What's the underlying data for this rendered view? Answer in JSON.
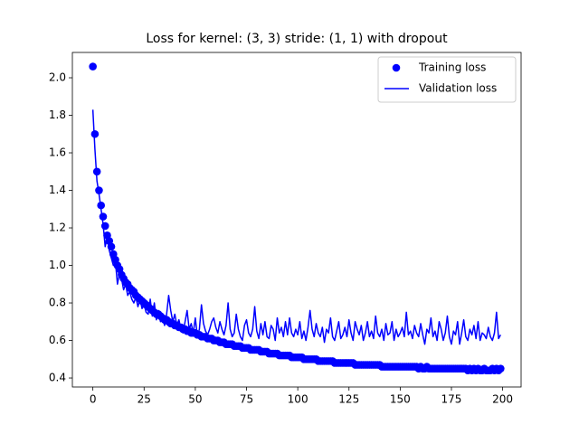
{
  "chart_data": {
    "type": "line",
    "title": "Loss for kernel: (3, 3) stride: (1, 1) with dropout",
    "xlim": [
      -10,
      209
    ],
    "ylim": [
      0.352,
      2.135
    ],
    "xticks": [
      0,
      25,
      50,
      75,
      100,
      125,
      150,
      175,
      200
    ],
    "yticks": [
      {
        "value": 0.4,
        "label": "0.4"
      },
      {
        "value": 0.6,
        "label": "0.6"
      },
      {
        "value": 0.8,
        "label": "0.8"
      },
      {
        "value": 1.0,
        "label": "1.0"
      },
      {
        "value": 1.2,
        "label": "1.2"
      },
      {
        "value": 1.4,
        "label": "1.4"
      },
      {
        "value": 1.6,
        "label": "1.6"
      },
      {
        "value": 1.8,
        "label": "1.8"
      },
      {
        "value": 2.0,
        "label": "2.0"
      }
    ],
    "legend": "upper right",
    "x": [
      0,
      1,
      2,
      3,
      4,
      5,
      6,
      7,
      8,
      9,
      10,
      11,
      12,
      13,
      14,
      15,
      16,
      17,
      18,
      19,
      20,
      21,
      22,
      23,
      24,
      25,
      26,
      27,
      28,
      29,
      30,
      31,
      32,
      33,
      34,
      35,
      36,
      37,
      38,
      39,
      40,
      41,
      42,
      43,
      44,
      45,
      46,
      47,
      48,
      49,
      50,
      51,
      52,
      53,
      54,
      55,
      56,
      57,
      58,
      59,
      60,
      61,
      62,
      63,
      64,
      65,
      66,
      67,
      68,
      69,
      70,
      71,
      72,
      73,
      74,
      75,
      76,
      77,
      78,
      79,
      80,
      81,
      82,
      83,
      84,
      85,
      86,
      87,
      88,
      89,
      90,
      91,
      92,
      93,
      94,
      95,
      96,
      97,
      98,
      99,
      100,
      101,
      102,
      103,
      104,
      105,
      106,
      107,
      108,
      109,
      110,
      111,
      112,
      113,
      114,
      115,
      116,
      117,
      118,
      119,
      120,
      121,
      122,
      123,
      124,
      125,
      126,
      127,
      128,
      129,
      130,
      131,
      132,
      133,
      134,
      135,
      136,
      137,
      138,
      139,
      140,
      141,
      142,
      143,
      144,
      145,
      146,
      147,
      148,
      149,
      150,
      151,
      152,
      153,
      154,
      155,
      156,
      157,
      158,
      159,
      160,
      161,
      162,
      163,
      164,
      165,
      166,
      167,
      168,
      169,
      170,
      171,
      172,
      173,
      174,
      175,
      176,
      177,
      178,
      179,
      180,
      181,
      182,
      183,
      184,
      185,
      186,
      187,
      188,
      189,
      190,
      191,
      192,
      193,
      194,
      195,
      196,
      197,
      198,
      199
    ],
    "series": [
      {
        "name": "Training loss",
        "color": "#0000ff",
        "mode": "markers",
        "values": [
          2.06,
          1.7,
          1.5,
          1.4,
          1.32,
          1.26,
          1.21,
          1.16,
          1.13,
          1.1,
          1.06,
          1.03,
          1.0,
          0.98,
          0.95,
          0.93,
          0.91,
          0.9,
          0.88,
          0.87,
          0.86,
          0.84,
          0.83,
          0.82,
          0.81,
          0.8,
          0.79,
          0.78,
          0.77,
          0.76,
          0.75,
          0.74,
          0.74,
          0.73,
          0.72,
          0.71,
          0.71,
          0.7,
          0.69,
          0.69,
          0.68,
          0.68,
          0.67,
          0.67,
          0.66,
          0.66,
          0.65,
          0.65,
          0.64,
          0.64,
          0.64,
          0.63,
          0.63,
          0.62,
          0.62,
          0.62,
          0.61,
          0.61,
          0.61,
          0.6,
          0.6,
          0.6,
          0.59,
          0.59,
          0.59,
          0.58,
          0.58,
          0.58,
          0.58,
          0.57,
          0.57,
          0.57,
          0.57,
          0.56,
          0.56,
          0.56,
          0.56,
          0.55,
          0.55,
          0.55,
          0.55,
          0.55,
          0.54,
          0.54,
          0.54,
          0.54,
          0.53,
          0.53,
          0.53,
          0.53,
          0.53,
          0.52,
          0.52,
          0.52,
          0.52,
          0.52,
          0.52,
          0.51,
          0.51,
          0.51,
          0.51,
          0.51,
          0.51,
          0.5,
          0.5,
          0.5,
          0.5,
          0.5,
          0.5,
          0.5,
          0.49,
          0.49,
          0.49,
          0.49,
          0.49,
          0.49,
          0.49,
          0.49,
          0.48,
          0.48,
          0.48,
          0.48,
          0.48,
          0.48,
          0.48,
          0.48,
          0.48,
          0.48,
          0.47,
          0.47,
          0.47,
          0.47,
          0.47,
          0.47,
          0.47,
          0.47,
          0.47,
          0.47,
          0.47,
          0.47,
          0.47,
          0.46,
          0.46,
          0.46,
          0.46,
          0.46,
          0.46,
          0.46,
          0.46,
          0.46,
          0.46,
          0.46,
          0.46,
          0.46,
          0.46,
          0.46,
          0.46,
          0.46,
          0.46,
          0.45,
          0.46,
          0.45,
          0.45,
          0.46,
          0.45,
          0.45,
          0.45,
          0.45,
          0.45,
          0.45,
          0.45,
          0.45,
          0.45,
          0.45,
          0.45,
          0.45,
          0.45,
          0.45,
          0.45,
          0.45,
          0.45,
          0.45,
          0.45,
          0.44,
          0.45,
          0.44,
          0.45,
          0.44,
          0.45,
          0.44,
          0.44,
          0.45,
          0.44,
          0.44,
          0.44,
          0.45,
          0.44,
          0.45,
          0.44,
          0.45
        ]
      },
      {
        "name": "Validation loss",
        "color": "#0000ff",
        "mode": "lines",
        "values": [
          1.83,
          1.62,
          1.45,
          1.38,
          1.3,
          1.22,
          1.1,
          1.15,
          1.08,
          1.04,
          1.0,
          1.02,
          0.9,
          0.96,
          0.93,
          0.87,
          0.9,
          0.84,
          0.86,
          0.82,
          0.8,
          0.83,
          0.78,
          0.82,
          0.77,
          0.79,
          0.75,
          0.74,
          0.82,
          0.73,
          0.8,
          0.71,
          0.76,
          0.7,
          0.72,
          0.68,
          0.74,
          0.84,
          0.76,
          0.7,
          0.74,
          0.68,
          0.71,
          0.66,
          0.64,
          0.7,
          0.76,
          0.66,
          0.69,
          0.64,
          0.72,
          0.62,
          0.66,
          0.79,
          0.69,
          0.65,
          0.63,
          0.66,
          0.7,
          0.72,
          0.67,
          0.64,
          0.7,
          0.66,
          0.63,
          0.68,
          0.8,
          0.66,
          0.62,
          0.64,
          0.74,
          0.66,
          0.62,
          0.6,
          0.68,
          0.71,
          0.64,
          0.62,
          0.66,
          0.78,
          0.65,
          0.61,
          0.69,
          0.63,
          0.7,
          0.62,
          0.61,
          0.68,
          0.66,
          0.6,
          0.72,
          0.64,
          0.67,
          0.62,
          0.7,
          0.63,
          0.72,
          0.64,
          0.62,
          0.66,
          0.63,
          0.7,
          0.61,
          0.65,
          0.6,
          0.67,
          0.76,
          0.66,
          0.62,
          0.69,
          0.64,
          0.62,
          0.67,
          0.59,
          0.66,
          0.64,
          0.72,
          0.62,
          0.6,
          0.65,
          0.7,
          0.61,
          0.63,
          0.67,
          0.62,
          0.71,
          0.64,
          0.6,
          0.7,
          0.66,
          0.63,
          0.68,
          0.6,
          0.64,
          0.7,
          0.62,
          0.65,
          0.61,
          0.73,
          0.64,
          0.62,
          0.66,
          0.6,
          0.69,
          0.63,
          0.64,
          0.7,
          0.6,
          0.66,
          0.62,
          0.64,
          0.67,
          0.62,
          0.75,
          0.63,
          0.65,
          0.61,
          0.68,
          0.64,
          0.62,
          0.69,
          0.63,
          0.58,
          0.66,
          0.64,
          0.72,
          0.62,
          0.65,
          0.6,
          0.7,
          0.66,
          0.6,
          0.64,
          0.73,
          0.62,
          0.58,
          0.65,
          0.63,
          0.7,
          0.58,
          0.64,
          0.71,
          0.62,
          0.6,
          0.66,
          0.63,
          0.68,
          0.61,
          0.7,
          0.6,
          0.64,
          0.63,
          0.61,
          0.67,
          0.62,
          0.6,
          0.64,
          0.75,
          0.61,
          0.63
        ]
      }
    ]
  }
}
